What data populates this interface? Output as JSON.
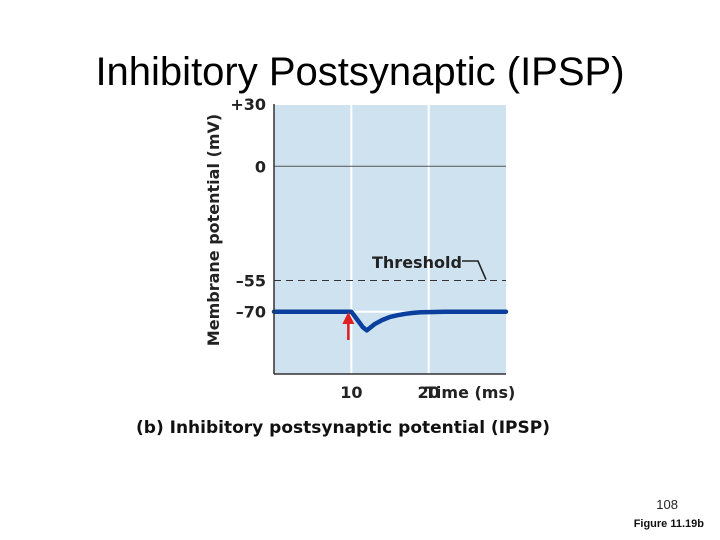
{
  "slide": {
    "title": "Inhibitory Postsynaptic (IPSP)",
    "page_number": "108",
    "figure_ref": "Figure 11.19b"
  },
  "chart_data": {
    "type": "line",
    "caption": "(b) Inhibitory postsynaptic potential (IPSP)",
    "xlabel": "Time (ms)",
    "ylabel": "Membrane potential (mV)",
    "xlim": [
      0,
      30
    ],
    "ylim": [
      -100,
      30
    ],
    "x_ticks": [
      {
        "value": 10,
        "label": "10"
      },
      {
        "value": 20,
        "label": "20"
      }
    ],
    "y_ticks": [
      {
        "value": 30,
        "label": "+30"
      },
      {
        "value": 0,
        "label": "0"
      },
      {
        "value": -55,
        "label": "–55"
      },
      {
        "value": -70,
        "label": "–70"
      }
    ],
    "grid": true,
    "threshold": {
      "value": -55,
      "label": "Threshold"
    },
    "stimulus": {
      "x": 10
    },
    "series": [
      {
        "x": [
          0,
          10,
          10.5,
          11,
          11.5,
          12,
          12.5,
          13,
          14,
          15,
          16,
          17,
          18,
          19,
          20,
          22,
          25,
          30
        ],
        "y": [
          -70,
          -70,
          -72.5,
          -75,
          -77.5,
          -79,
          -77.5,
          -76,
          -74,
          -72.5,
          -71.7,
          -71,
          -70.6,
          -70.3,
          -70.2,
          -70,
          -70,
          -70
        ]
      }
    ],
    "colors": {
      "plot_background": "#cfe2f0",
      "line": "#0b3f9e",
      "stimulus_arrow": "#e02020",
      "threshold": "#333333",
      "grid": "#ffffff"
    }
  }
}
